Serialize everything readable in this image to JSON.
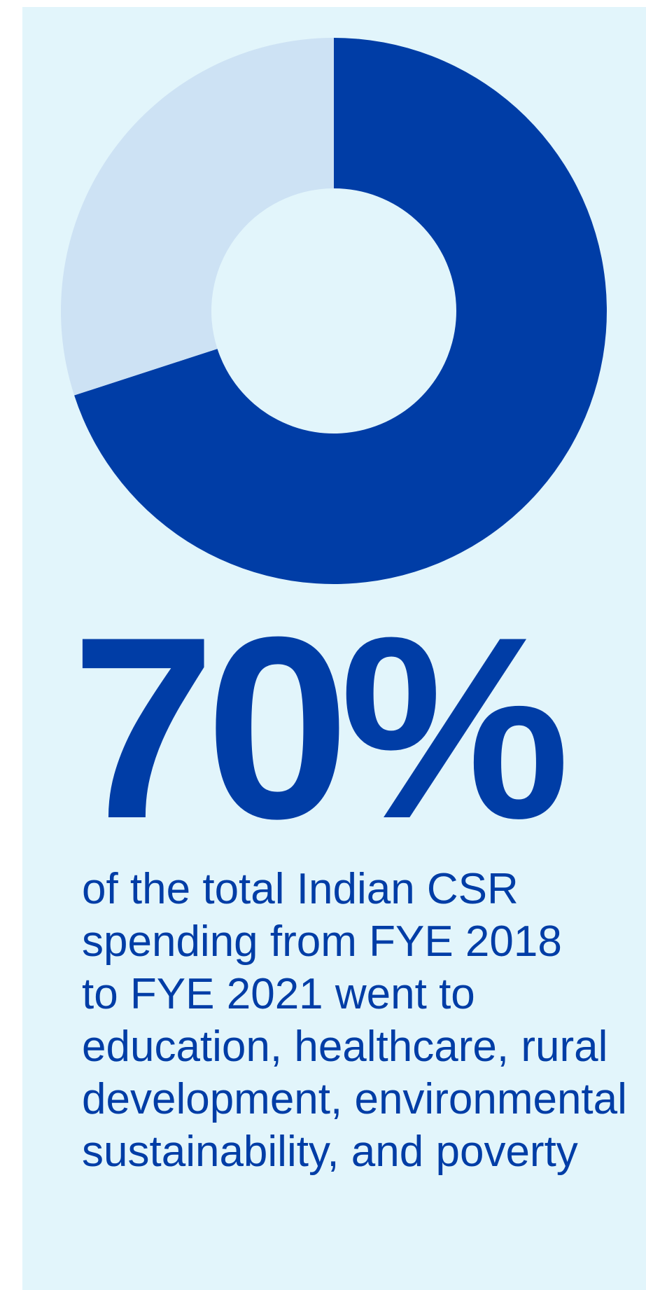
{
  "chart_data": {
    "type": "pie",
    "variant": "donut",
    "slices": [
      {
        "label": "",
        "value": 70,
        "color": "#003da6"
      },
      {
        "label": "",
        "value": 30,
        "color": "#cde2f4"
      }
    ]
  },
  "headline": {
    "value": "70%"
  },
  "caption": {
    "lines": [
      "of the total Indian CSR",
      "spending from FYE 2018",
      "to FYE 2021 went to",
      "education, healthcare, rural",
      "development, environmental",
      "sustainability, and poverty"
    ]
  },
  "colors": {
    "background": "#e2f5fb",
    "accent": "#003da6",
    "accent_light": "#cde2f4"
  }
}
